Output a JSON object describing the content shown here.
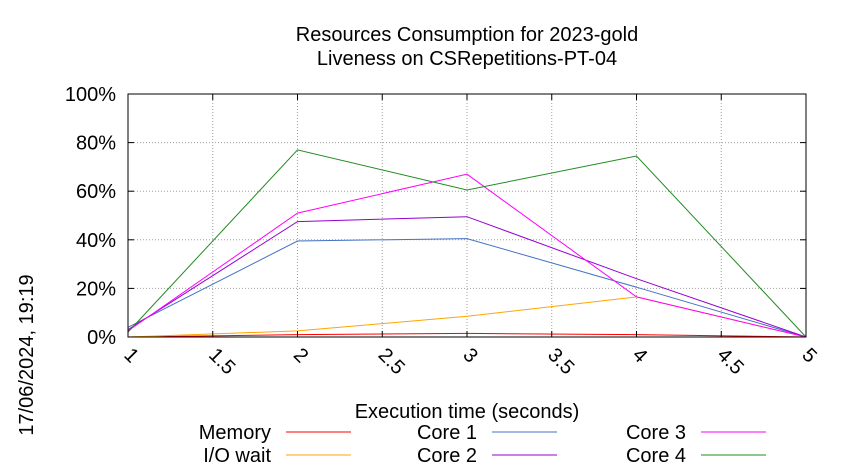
{
  "chart_data": {
    "type": "line",
    "title": "Resources Consumption for 2023-gold",
    "subtitle": "Liveness on CSRepetitions-PT-04",
    "xlabel": "Execution time (seconds)",
    "ylabel": "",
    "side_label": "17/06/2024, 19:19",
    "xlim": [
      1,
      5
    ],
    "ylim": [
      0,
      100
    ],
    "x_ticks": [
      1,
      1.5,
      2,
      2.5,
      3,
      3.5,
      4,
      4.5,
      5
    ],
    "x_tick_labels": [
      "1",
      "1.5",
      "2",
      "2.5",
      "3",
      "3.5",
      "4",
      "4.5",
      "5"
    ],
    "y_ticks": [
      0,
      20,
      40,
      60,
      80,
      100
    ],
    "y_tick_labels": [
      "0%",
      "20%",
      "40%",
      "60%",
      "80%",
      "100%"
    ],
    "grid": true,
    "legend_position": "bottom",
    "series": [
      {
        "name": "Memory",
        "color": "#ff0000",
        "x": [
          1,
          2,
          3,
          4,
          5
        ],
        "values": [
          0,
          1,
          1.5,
          1,
          0
        ]
      },
      {
        "name": "I/O wait",
        "color": "#ffa500",
        "x": [
          1,
          2,
          3,
          4,
          5
        ],
        "values": [
          0,
          2.5,
          8.5,
          16.5,
          0
        ]
      },
      {
        "name": "Core 1",
        "color": "#4472c4",
        "x": [
          1,
          2,
          3,
          4,
          5
        ],
        "values": [
          4,
          39.5,
          40.5,
          20.5,
          0
        ]
      },
      {
        "name": "Core 2",
        "color": "#9400d3",
        "x": [
          1,
          2,
          3,
          4,
          5
        ],
        "values": [
          3,
          47.5,
          49.5,
          24,
          0
        ]
      },
      {
        "name": "Core 3",
        "color": "#ff00ff",
        "x": [
          1,
          2,
          3,
          4,
          5
        ],
        "values": [
          2.5,
          51,
          67,
          16.5,
          0
        ]
      },
      {
        "name": "Core 4",
        "color": "#228b22",
        "x": [
          1,
          2,
          3,
          4,
          5
        ],
        "values": [
          2,
          77,
          60.5,
          74.5,
          0
        ]
      }
    ]
  }
}
